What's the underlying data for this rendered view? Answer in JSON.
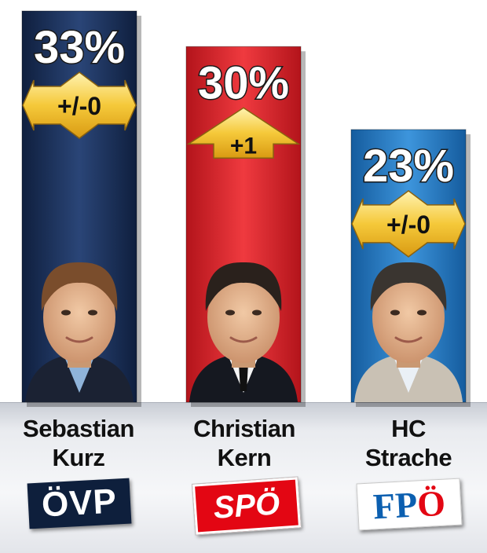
{
  "chart_data": {
    "type": "bar",
    "title": "",
    "xlabel": "",
    "ylabel": "",
    "ylim": [
      0,
      40
    ],
    "categories": [
      "Sebastian Kurz",
      "Christian Kern",
      "HC Strache"
    ],
    "values": [
      33,
      30,
      23
    ],
    "labels": [
      "33%",
      "30%",
      "23%"
    ],
    "changes": [
      "+/-0",
      "+1",
      "+/-0"
    ],
    "change_direction": [
      "neutral",
      "up",
      "neutral"
    ],
    "bar_colors": [
      "#1c335e",
      "#d9232a",
      "#1f74c0"
    ],
    "arrow_color": "#f2c23a",
    "grid": false,
    "legend": "none"
  },
  "candidates": [
    {
      "first": "Sebastian",
      "last": "Kurz",
      "party": "ÖVP"
    },
    {
      "first": "Christian",
      "last": "Kern",
      "party": "SPÖ"
    },
    {
      "first": "HC",
      "last": "Strache",
      "party_pre": "FP",
      "party_post": "Ö"
    }
  ]
}
